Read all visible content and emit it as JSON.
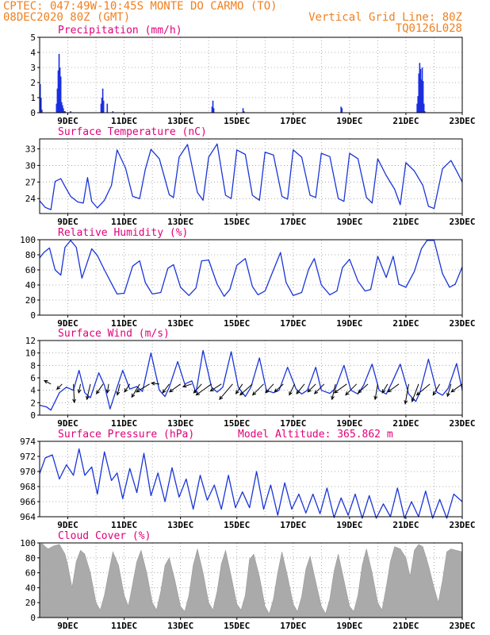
{
  "header": {
    "line1_left": "CPTEC:  047:49W-10:45S  MONTE DO CARMO (TO)",
    "line2_left": "08DEC2020 80Z (GMT)",
    "line2_right": "Vertical Grid Line: 80Z",
    "line3_right": "TQ0126L028"
  },
  "colors": {
    "header": "#f08020",
    "title": "#e0007a",
    "series": "#1a35d8",
    "bars": "#1a2fe0",
    "cloud": "#aaaaaa",
    "wind": "#000000",
    "grid": "#9a9a9a"
  },
  "x_tick_labels": [
    "9DEC",
    "11DEC",
    "13DEC",
    "15DEC",
    "17DEC",
    "19DEC",
    "21DEC",
    "23DEC"
  ],
  "chart_data": [
    {
      "id": "precip",
      "type": "bar",
      "title": "Precipitation (mm/h)",
      "ylim": [
        0,
        5
      ],
      "yticks": [
        0,
        1,
        2,
        3,
        4,
        5
      ],
      "x_unit": "days since 08DEC2020 00Z",
      "xlim": [
        0,
        15
      ],
      "x": [
        0.02,
        0.05,
        0.08,
        0.6,
        0.63,
        0.66,
        0.69,
        0.72,
        0.75,
        0.78,
        0.81,
        0.84,
        0.87,
        0.9,
        1.1,
        2.18,
        2.21,
        2.24,
        2.27,
        2.4,
        2.6,
        6.12,
        6.15,
        6.18,
        7.22,
        7.25,
        10.7,
        10.73,
        13.4,
        13.43,
        13.46,
        13.49,
        13.52,
        13.55,
        13.58,
        13.61,
        13.64,
        13.67
      ],
      "values": [
        1.9,
        1.0,
        0.2,
        0.6,
        1.6,
        2.8,
        3.9,
        3.0,
        2.4,
        0.7,
        0.5,
        0.3,
        0.1,
        0.1,
        0.1,
        0.6,
        1.0,
        1.6,
        0.8,
        0.6,
        0.1,
        0.4,
        0.8,
        0.3,
        0.3,
        0.1,
        0.4,
        0.3,
        0.6,
        1.1,
        2.6,
        3.3,
        2.9,
        2.2,
        3.0,
        2.1,
        0.6,
        0.1
      ]
    },
    {
      "id": "temp",
      "type": "line",
      "title": "Surface Temperature (nC)",
      "ylim": [
        21.3,
        34.8
      ],
      "yticks": [
        24,
        27,
        30,
        33
      ],
      "x_unit": "days since 08DEC2020 00Z",
      "xlim": [
        0,
        15
      ],
      "x": [
        0.0,
        0.2,
        0.4,
        0.55,
        0.75,
        0.9,
        1.1,
        1.35,
        1.55,
        1.7,
        1.85,
        2.05,
        2.3,
        2.55,
        2.75,
        3.05,
        3.3,
        3.55,
        3.75,
        3.95,
        4.25,
        4.6,
        4.75,
        4.95,
        5.25,
        5.6,
        5.8,
        6.0,
        6.3,
        6.6,
        6.8,
        7.0,
        7.3,
        7.55,
        7.8,
        8.0,
        8.3,
        8.6,
        8.8,
        9.0,
        9.3,
        9.6,
        9.8,
        10.0,
        10.3,
        10.6,
        10.8,
        11.0,
        11.3,
        11.6,
        11.8,
        12.0,
        12.3,
        12.6,
        12.8,
        13.0,
        13.3,
        13.6,
        13.8,
        14.0,
        14.3,
        14.6,
        14.8,
        15.0
      ],
      "values": [
        23.6,
        22.4,
        22.0,
        27.1,
        27.6,
        26.2,
        24.4,
        23.4,
        23.2,
        27.8,
        23.5,
        22.3,
        23.7,
        26.4,
        32.8,
        29.5,
        24.4,
        24.0,
        29.3,
        32.9,
        31.2,
        24.7,
        24.2,
        31.5,
        33.8,
        25.1,
        23.7,
        31.5,
        33.9,
        24.6,
        24.0,
        32.8,
        32.0,
        24.6,
        23.7,
        32.4,
        31.9,
        24.4,
        23.9,
        32.8,
        31.5,
        24.6,
        24.2,
        32.2,
        31.6,
        24.0,
        23.5,
        32.2,
        31.2,
        24.2,
        23.2,
        31.2,
        28.2,
        25.7,
        22.9,
        30.5,
        29.0,
        26.4,
        22.6,
        22.2,
        29.4,
        30.9,
        29.0,
        27.0
      ]
    },
    {
      "id": "rh",
      "type": "line",
      "title": "Relative Humidity (%)",
      "ylim": [
        0,
        100
      ],
      "yticks": [
        0,
        20,
        40,
        60,
        80,
        100
      ],
      "x_unit": "days since 08DEC2020 00Z",
      "xlim": [
        0,
        15
      ],
      "x": [
        0.0,
        0.15,
        0.35,
        0.55,
        0.75,
        0.9,
        1.1,
        1.3,
        1.5,
        1.7,
        1.85,
        2.05,
        2.3,
        2.55,
        2.75,
        3.0,
        3.3,
        3.55,
        3.75,
        4.0,
        4.3,
        4.55,
        4.75,
        5.0,
        5.3,
        5.55,
        5.75,
        6.0,
        6.3,
        6.55,
        6.75,
        7.0,
        7.3,
        7.55,
        7.75,
        8.0,
        8.3,
        8.55,
        8.75,
        9.0,
        9.3,
        9.55,
        9.75,
        10.0,
        10.3,
        10.55,
        10.75,
        11.0,
        11.3,
        11.55,
        11.75,
        12.0,
        12.3,
        12.55,
        12.75,
        13.0,
        13.3,
        13.55,
        13.75,
        14.0,
        14.3,
        14.55,
        14.75,
        15.0
      ],
      "values": [
        76,
        83,
        89,
        60,
        53,
        90,
        99,
        90,
        49,
        71,
        88,
        79,
        60,
        42,
        28,
        29,
        65,
        72,
        43,
        28,
        30,
        62,
        67,
        37,
        26,
        36,
        72,
        73,
        41,
        25,
        34,
        66,
        75,
        38,
        27,
        32,
        60,
        83,
        43,
        26,
        30,
        61,
        75,
        40,
        27,
        32,
        63,
        74,
        45,
        32,
        34,
        78,
        50,
        78,
        41,
        37,
        58,
        88,
        99,
        99,
        55,
        37,
        41,
        64
      ]
    },
    {
      "id": "wind",
      "type": "line",
      "title": "Surface Wind (m/s)",
      "ylim": [
        0,
        12
      ],
      "yticks": [
        0,
        2,
        4,
        6,
        8,
        10,
        12
      ],
      "x_unit": "days since 08DEC2020 00Z",
      "xlim": [
        0,
        15
      ],
      "x": [
        0.0,
        0.25,
        0.4,
        0.7,
        0.95,
        1.2,
        1.4,
        1.6,
        1.8,
        2.1,
        2.3,
        2.5,
        2.75,
        2.95,
        3.2,
        3.45,
        3.65,
        3.95,
        4.25,
        4.45,
        4.6,
        4.9,
        5.15,
        5.4,
        5.55,
        5.8,
        6.1,
        6.3,
        6.5,
        6.8,
        7.05,
        7.3,
        7.5,
        7.8,
        8.05,
        8.3,
        8.5,
        8.8,
        9.1,
        9.3,
        9.5,
        9.8,
        10.0,
        10.3,
        10.5,
        10.8,
        11.05,
        11.3,
        11.5,
        11.8,
        12.05,
        12.3,
        12.5,
        12.8,
        13.1,
        13.35,
        13.5,
        13.8,
        14.1,
        14.3,
        14.5,
        14.8,
        15.0
      ],
      "values": [
        1.6,
        1.3,
        0.8,
        3.6,
        4.5,
        4.0,
        7.2,
        3.6,
        2.8,
        6.8,
        4.8,
        1.0,
        4.5,
        7.2,
        4.2,
        4.6,
        3.8,
        10.0,
        4.0,
        3.0,
        4.5,
        8.6,
        5.0,
        5.5,
        3.6,
        10.4,
        4.5,
        3.7,
        4.5,
        10.2,
        4.5,
        3.0,
        4.5,
        9.2,
        4.0,
        3.6,
        4.0,
        7.7,
        4.2,
        3.4,
        4.0,
        7.7,
        4.0,
        3.5,
        4.3,
        8.0,
        4.0,
        3.4,
        4.8,
        8.2,
        4.0,
        3.4,
        5.2,
        8.2,
        3.4,
        2.2,
        3.7,
        9.0,
        3.7,
        3.2,
        4.3,
        8.3,
        4.0
      ],
      "vectors": {
        "x": [
          0.4,
          0.8,
          1.2,
          1.45,
          1.8,
          2.25,
          2.45,
          2.85,
          3.2,
          3.55,
          3.9,
          4.25,
          4.6,
          5.0,
          5.4,
          5.75,
          6.1,
          6.45,
          6.85,
          7.2,
          7.55,
          7.95,
          8.3,
          8.65,
          9.05,
          9.4,
          9.8,
          10.1,
          10.5,
          10.9,
          11.25,
          11.65,
          12.0,
          12.35,
          12.75,
          13.1,
          13.45,
          13.85,
          14.2,
          14.6,
          15.0
        ],
        "u": [
          1.5,
          1.2,
          -0.2,
          0.4,
          0.8,
          1.5,
          0.3,
          0.6,
          1.2,
          1.8,
          3.0,
          1.8,
          1.5,
          2.5,
          2.0,
          1.8,
          3.5,
          2.5,
          3.0,
          1.5,
          2.8,
          2.5,
          1.8,
          2.0,
          1.2,
          1.8,
          1.8,
          2.2,
          0.8,
          2.8,
          2.5,
          2.2,
          0.6,
          1.2,
          2.5,
          0.8,
          1.5,
          3.0,
          1.5,
          0.8,
          2.5
        ],
        "v": [
          0.8,
          -1.2,
          -4.2,
          -2.0,
          -3.5,
          -2.2,
          -2.0,
          -2.5,
          -1.8,
          -3.0,
          -1.8,
          0.2,
          -2.0,
          -1.8,
          -0.6,
          -2.0,
          -2.5,
          -1.6,
          -3.5,
          -2.2,
          -2.5,
          -2.5,
          -2.0,
          -1.8,
          -2.5,
          -2.2,
          -1.8,
          -2.2,
          -3.5,
          -2.0,
          -2.5,
          -2.0,
          -3.5,
          -2.0,
          -1.8,
          -4.5,
          -4.0,
          -2.5,
          -2.5,
          -2.8,
          -1.8
        ]
      }
    },
    {
      "id": "pres",
      "type": "line",
      "title": "Surface Pressure (hPa)",
      "annotation": "Model Altitude: 365.862 m",
      "ylim": [
        964,
        974
      ],
      "yticks": [
        964,
        966,
        968,
        970,
        972,
        974
      ],
      "x_unit": "days since 08DEC2020 00Z",
      "xlim": [
        0,
        15
      ],
      "x": [
        0.0,
        0.2,
        0.45,
        0.7,
        0.95,
        1.2,
        1.4,
        1.6,
        1.85,
        2.05,
        2.3,
        2.55,
        2.75,
        2.95,
        3.2,
        3.45,
        3.7,
        3.95,
        4.2,
        4.45,
        4.7,
        4.95,
        5.2,
        5.45,
        5.7,
        5.95,
        6.2,
        6.45,
        6.7,
        6.95,
        7.2,
        7.45,
        7.7,
        7.95,
        8.2,
        8.45,
        8.7,
        8.95,
        9.2,
        9.45,
        9.7,
        9.95,
        10.2,
        10.45,
        10.7,
        10.95,
        11.2,
        11.45,
        11.7,
        11.95,
        12.2,
        12.45,
        12.7,
        12.95,
        13.2,
        13.45,
        13.7,
        13.95,
        14.2,
        14.45,
        14.7,
        15.0
      ],
      "values": [
        969.7,
        971.8,
        972.2,
        969.0,
        970.9,
        969.5,
        973.0,
        969.5,
        970.6,
        967.0,
        972.6,
        968.8,
        969.8,
        966.4,
        970.4,
        967.2,
        972.4,
        966.8,
        969.8,
        966.0,
        970.5,
        966.6,
        969.0,
        965.0,
        969.5,
        966.2,
        968.2,
        965.0,
        969.5,
        965.2,
        967.3,
        965.2,
        970.0,
        965.0,
        968.2,
        964.2,
        968.5,
        965.0,
        967.0,
        964.5,
        967.0,
        964.4,
        967.8,
        963.9,
        966.5,
        964.2,
        967.0,
        963.8,
        966.8,
        963.8,
        965.7,
        964.0,
        967.8,
        963.8,
        966.0,
        964.0,
        967.4,
        963.8,
        966.3,
        963.8,
        967.0,
        966.0
      ]
    },
    {
      "id": "cloud",
      "type": "area",
      "title": "Cloud Cover (%)",
      "ylim": [
        0,
        100
      ],
      "yticks": [
        0,
        20,
        40,
        60,
        80,
        100
      ],
      "x_unit": "days since 08DEC2020 00Z",
      "xlim": [
        0,
        15
      ],
      "x": [
        0.0,
        0.1,
        0.2,
        0.3,
        0.5,
        0.7,
        0.9,
        1.0,
        1.15,
        1.3,
        1.45,
        1.6,
        1.8,
        2.0,
        2.15,
        2.3,
        2.45,
        2.6,
        2.8,
        3.0,
        3.15,
        3.3,
        3.45,
        3.6,
        3.8,
        4.0,
        4.15,
        4.3,
        4.45,
        4.6,
        4.8,
        5.0,
        5.15,
        5.3,
        5.45,
        5.6,
        5.8,
        6.0,
        6.15,
        6.3,
        6.45,
        6.6,
        6.8,
        7.0,
        7.15,
        7.3,
        7.45,
        7.6,
        7.8,
        8.0,
        8.15,
        8.3,
        8.45,
        8.6,
        8.8,
        9.0,
        9.15,
        9.3,
        9.45,
        9.6,
        9.8,
        10.0,
        10.15,
        10.3,
        10.45,
        10.6,
        10.8,
        11.0,
        11.15,
        11.3,
        11.45,
        11.6,
        11.8,
        12.0,
        12.15,
        12.3,
        12.45,
        12.6,
        12.8,
        13.0,
        13.15,
        13.3,
        13.45,
        13.6,
        13.8,
        14.0,
        14.15,
        14.3,
        14.45,
        14.6,
        14.8,
        15.0
      ],
      "values": [
        98,
        99,
        95,
        92,
        96,
        98,
        85,
        70,
        40,
        75,
        90,
        85,
        60,
        20,
        10,
        30,
        60,
        88,
        70,
        30,
        15,
        45,
        75,
        90,
        60,
        20,
        10,
        35,
        70,
        80,
        50,
        15,
        8,
        30,
        70,
        92,
        60,
        20,
        10,
        35,
        72,
        90,
        55,
        18,
        10,
        30,
        78,
        85,
        55,
        15,
        5,
        25,
        60,
        88,
        55,
        18,
        8,
        28,
        65,
        82,
        48,
        15,
        5,
        25,
        62,
        85,
        50,
        15,
        8,
        30,
        70,
        92,
        60,
        20,
        10,
        40,
        75,
        95,
        92,
        80,
        55,
        90,
        98,
        95,
        70,
        40,
        20,
        50,
        88,
        92,
        90,
        88
      ]
    }
  ]
}
